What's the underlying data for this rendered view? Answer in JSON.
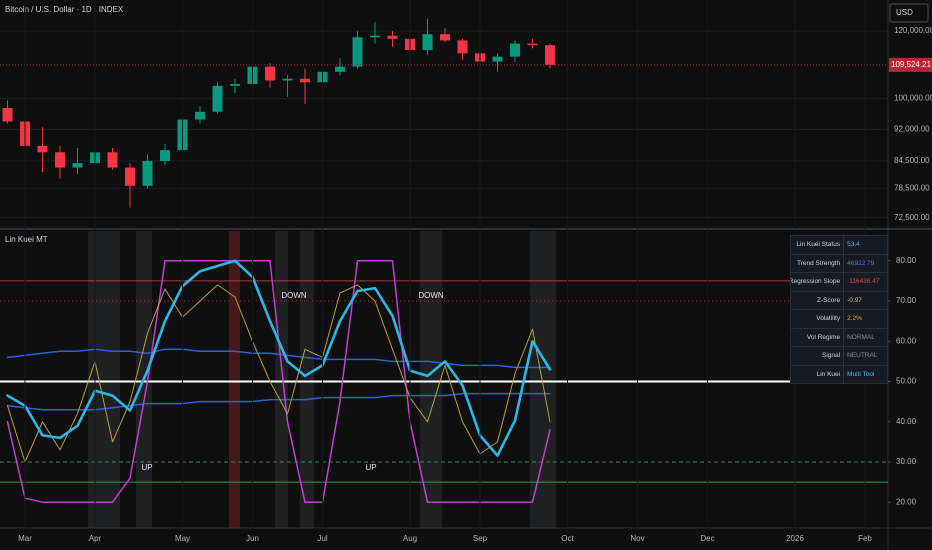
{
  "chart_data": [
    {
      "type": "candlestick",
      "title": "Bitcoin / U.S. Dollar · 1D · INDEX",
      "currency": "USD",
      "categories": [
        null,
        "Mar",
        null,
        null,
        null,
        "Apr",
        null,
        null,
        null,
        null,
        "May",
        null,
        null,
        null,
        "Jun",
        null,
        null,
        null,
        "Jul",
        null,
        null,
        null,
        null,
        "Aug",
        null,
        null,
        null,
        "Sep",
        null,
        null,
        null,
        null,
        "Oct",
        null,
        null,
        null,
        "Nov",
        null,
        null,
        null,
        "Dec",
        null,
        null,
        null,
        null,
        "2026",
        null,
        null,
        null,
        "Feb",
        null
      ],
      "open": [
        97500,
        94000,
        88000,
        86500,
        83000,
        84000,
        86500,
        83000,
        79000,
        84500,
        87000,
        94500,
        96500,
        103500,
        104000,
        109000,
        105000,
        105500,
        104500,
        107500,
        109000,
        118000,
        118500,
        117500,
        114000,
        119000,
        117000,
        113000,
        110500,
        112000,
        116000,
        115500,
        null,
        null,
        null,
        null,
        null,
        null,
        null,
        null,
        null,
        null,
        null,
        null,
        null,
        null,
        null,
        null,
        null,
        null,
        null
      ],
      "high": [
        99500,
        95000,
        92500,
        88000,
        87500,
        88000,
        87500,
        84000,
        86000,
        88500,
        95500,
        98000,
        104500,
        105500,
        111500,
        110000,
        106500,
        108500,
        109500,
        111500,
        120000,
        123000,
        120000,
        119500,
        124000,
        121000,
        117500,
        113500,
        113000,
        117000,
        117500,
        116000,
        null,
        null,
        null,
        null,
        null,
        null,
        null,
        null,
        null,
        null,
        null,
        null,
        null,
        null,
        null,
        null,
        null,
        null,
        null
      ],
      "low": [
        93500,
        85500,
        82000,
        80500,
        81500,
        83000,
        82500,
        74500,
        78500,
        83500,
        86500,
        93500,
        96000,
        101500,
        102500,
        103000,
        100500,
        98500,
        104500,
        106500,
        108500,
        116000,
        115000,
        112500,
        112500,
        116500,
        111000,
        108000,
        107500,
        110500,
        114500,
        108500,
        null,
        null,
        null,
        null,
        null,
        null,
        null,
        null,
        null,
        null,
        null,
        null,
        null,
        null,
        null,
        null,
        null,
        null,
        null
      ],
      "close": [
        94000,
        88000,
        86500,
        83000,
        84000,
        86500,
        83000,
        79000,
        84500,
        87000,
        94500,
        96500,
        103500,
        104000,
        109000,
        105000,
        105500,
        104500,
        107500,
        109000,
        118000,
        118500,
        117500,
        114000,
        119000,
        117000,
        113000,
        110500,
        112000,
        116000,
        115500,
        109524.21,
        null,
        null,
        null,
        null,
        null,
        null,
        null,
        null,
        null,
        null,
        null,
        null,
        null,
        null,
        null,
        null,
        null,
        null,
        null
      ],
      "up_color": "#089981",
      "down_color": "#f23645",
      "ylim": [
        70500,
        130500
      ],
      "log": true,
      "yticks": [
        {
          "value": 72500,
          "label": "72,500.00"
        },
        {
          "value": 78500,
          "label": "78,500.00"
        },
        {
          "value": 84500,
          "label": "84,500.00"
        },
        {
          "value": 92000,
          "label": "92,000.00"
        },
        {
          "value": 100000,
          "label": "100,000.00"
        },
        {
          "value": 120000,
          "label": "120,000.00"
        }
      ],
      "last_price": 109524.21,
      "last_price_label": "109,524.21",
      "last_price_color": "#b22833"
    },
    {
      "type": "line",
      "title": "Lin Kuei MT",
      "series": [
        {
          "color": "#2f5fe0",
          "width": 1.5,
          "values": [
            56,
            56.5,
            57,
            57.5,
            57.5,
            58,
            57.5,
            57.5,
            57,
            58,
            58,
            57.5,
            57.5,
            57.5,
            57,
            57,
            56.5,
            56,
            55.5,
            55.5,
            55.5,
            55.5,
            55,
            55,
            55,
            54.5,
            54,
            54,
            54,
            53.5,
            53.5,
            53.5,
            null,
            null,
            null,
            null,
            null,
            null,
            null,
            null,
            null,
            null,
            null,
            null,
            null,
            null,
            null,
            null,
            null,
            null,
            null
          ]
        },
        {
          "color": "#2f5fe0",
          "width": 1.5,
          "values": [
            44,
            43.5,
            43,
            43,
            43,
            43,
            43.5,
            44,
            44.5,
            44.5,
            44.5,
            45,
            45,
            45,
            45,
            45.5,
            45.5,
            45.5,
            46,
            46,
            46,
            46,
            46.5,
            46.5,
            46.5,
            46.5,
            47,
            47,
            47,
            47,
            47,
            47,
            null,
            null,
            null,
            null,
            null,
            null,
            null,
            null,
            null,
            null,
            null,
            null,
            null,
            null,
            null,
            null,
            null,
            null,
            null
          ]
        },
        {
          "color": "#c23fd1",
          "width": 1.5,
          "values": [
            40,
            21,
            20,
            20,
            20,
            20,
            20,
            26,
            50,
            80,
            80,
            80,
            80,
            80,
            80,
            80,
            40,
            20,
            20,
            45,
            80,
            80,
            80,
            40,
            20,
            20,
            20,
            20,
            20,
            20,
            20,
            38,
            null,
            null,
            null,
            null,
            null,
            null,
            null,
            null,
            null,
            null,
            null,
            null,
            null,
            null,
            null,
            null,
            null,
            null,
            null
          ]
        },
        {
          "color": "#b8a23a",
          "width": 1,
          "values": [
            44,
            30,
            40,
            33,
            42,
            55,
            35,
            45,
            62,
            73,
            66,
            70,
            74,
            71,
            60,
            50,
            42,
            58,
            56,
            72,
            74,
            70,
            58,
            46,
            40,
            54,
            40,
            32,
            35,
            52,
            63,
            40,
            null,
            null,
            null,
            null,
            null,
            null,
            null,
            null,
            null,
            null,
            null,
            null,
            null,
            null,
            null,
            null,
            null,
            null,
            null
          ]
        },
        {
          "color": "#2bb8e6",
          "width": 2.6,
          "values": [
            46.5,
            44,
            36.6,
            36,
            39,
            47.7,
            46.5,
            42.8,
            52.7,
            65,
            73.7,
            77.4,
            78.7,
            80,
            76,
            65,
            55,
            51.4,
            54,
            65,
            72.5,
            73.2,
            66.3,
            52.7,
            51.4,
            55,
            49,
            36.6,
            31.6,
            40.3,
            60,
            53,
            null,
            null,
            null,
            null,
            null,
            null,
            null,
            null,
            null,
            null,
            null,
            null,
            null,
            null,
            null,
            null,
            null,
            null,
            null
          ]
        }
      ],
      "ylim": [
        13.6,
        87.4
      ],
      "yticks": [
        {
          "value": 20,
          "label": "20.00"
        },
        {
          "value": 30,
          "label": "30.00"
        },
        {
          "value": 40,
          "label": "40.00"
        },
        {
          "value": 50,
          "label": "50.00"
        },
        {
          "value": 60,
          "label": "60.00"
        },
        {
          "value": 70,
          "label": "70.00"
        },
        {
          "value": 80,
          "label": "80.00"
        }
      ],
      "hlines": [
        {
          "value": 75,
          "color": "#b2393c",
          "dash": "solid",
          "width": 1
        },
        {
          "value": 70,
          "color": "#8a3335",
          "dash": "dotted",
          "width": 1
        },
        {
          "value": 50,
          "color": "#ffffff",
          "dash": "solid",
          "width": 2
        },
        {
          "value": 30,
          "color": "#2e8b57",
          "dash": "dashed",
          "width": 1
        },
        {
          "value": 25,
          "color": "#2e9e5b",
          "dash": "solid",
          "width": 1
        }
      ],
      "annotations": [
        "UP",
        "DOWN",
        "UP",
        "DOWN"
      ],
      "table": {
        "rows": [
          {
            "label": "Lin Kuei Status",
            "value": "53.4",
            "color": "#4fb3f0"
          },
          {
            "label": "Trend Strength",
            "value": "46922.79",
            "color": "#5b6fd6"
          },
          {
            "label": "Regression Slope",
            "value": "-116436.47",
            "color": "#e0484f"
          },
          {
            "label": "Z-Score",
            "value": "-0.97",
            "color": "#e3c440"
          },
          {
            "label": "Volatility",
            "value": "2.2%",
            "color": "#f0a030"
          },
          {
            "label": "Vol Regime",
            "value": "NORMAL",
            "color": "#8a8f9c"
          },
          {
            "label": "Signal",
            "value": "NEUTRAL",
            "color": "#8a8f9c"
          },
          {
            "label": "Lin Kuei",
            "value": "Multi Tool",
            "color": "#4fb3f0"
          }
        ]
      }
    }
  ]
}
